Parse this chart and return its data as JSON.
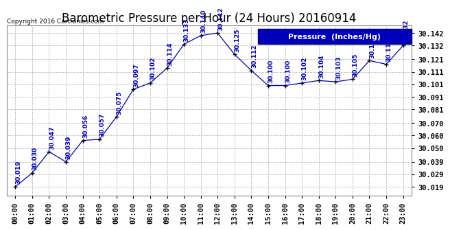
{
  "title": "Barometric Pressure per Hour (24 Hours) 20160914",
  "copyright": "Copyright 2016 Cartronics.com",
  "legend_label": "Pressure  (Inches/Hg)",
  "hours": [
    0,
    1,
    2,
    3,
    4,
    5,
    6,
    7,
    8,
    9,
    10,
    11,
    12,
    13,
    14,
    15,
    16,
    17,
    18,
    19,
    20,
    21,
    22,
    23
  ],
  "x_labels": [
    "00:00",
    "01:00",
    "02:00",
    "03:00",
    "04:00",
    "05:00",
    "06:00",
    "07:00",
    "08:00",
    "09:00",
    "10:00",
    "11:00",
    "12:00",
    "13:00",
    "14:00",
    "15:00",
    "16:00",
    "17:00",
    "18:00",
    "19:00",
    "20:00",
    "21:00",
    "22:00",
    "23:00"
  ],
  "pressure": [
    30.019,
    30.03,
    30.047,
    30.039,
    30.056,
    30.057,
    30.075,
    30.097,
    30.102,
    30.114,
    30.133,
    30.14,
    30.142,
    30.125,
    30.112,
    30.1,
    30.1,
    30.102,
    30.104,
    30.103,
    30.105,
    30.12,
    30.117,
    30.132
  ],
  "line_color": "#0000bb",
  "marker": "+",
  "bg_color": "#ffffff",
  "plot_bg_color": "#ffffff",
  "grid_color": "#bbbbbb",
  "y_ticks": [
    30.019,
    30.029,
    30.039,
    30.05,
    30.06,
    30.07,
    30.081,
    30.091,
    30.101,
    30.111,
    30.121,
    30.132,
    30.142
  ],
  "ylim": [
    30.012,
    30.148
  ],
  "title_fontsize": 12,
  "tick_fontsize": 7.5,
  "annotation_fontsize": 6.5,
  "legend_bg": "#0000bb",
  "legend_text_color": "#ffffff",
  "legend_fontsize": 8
}
